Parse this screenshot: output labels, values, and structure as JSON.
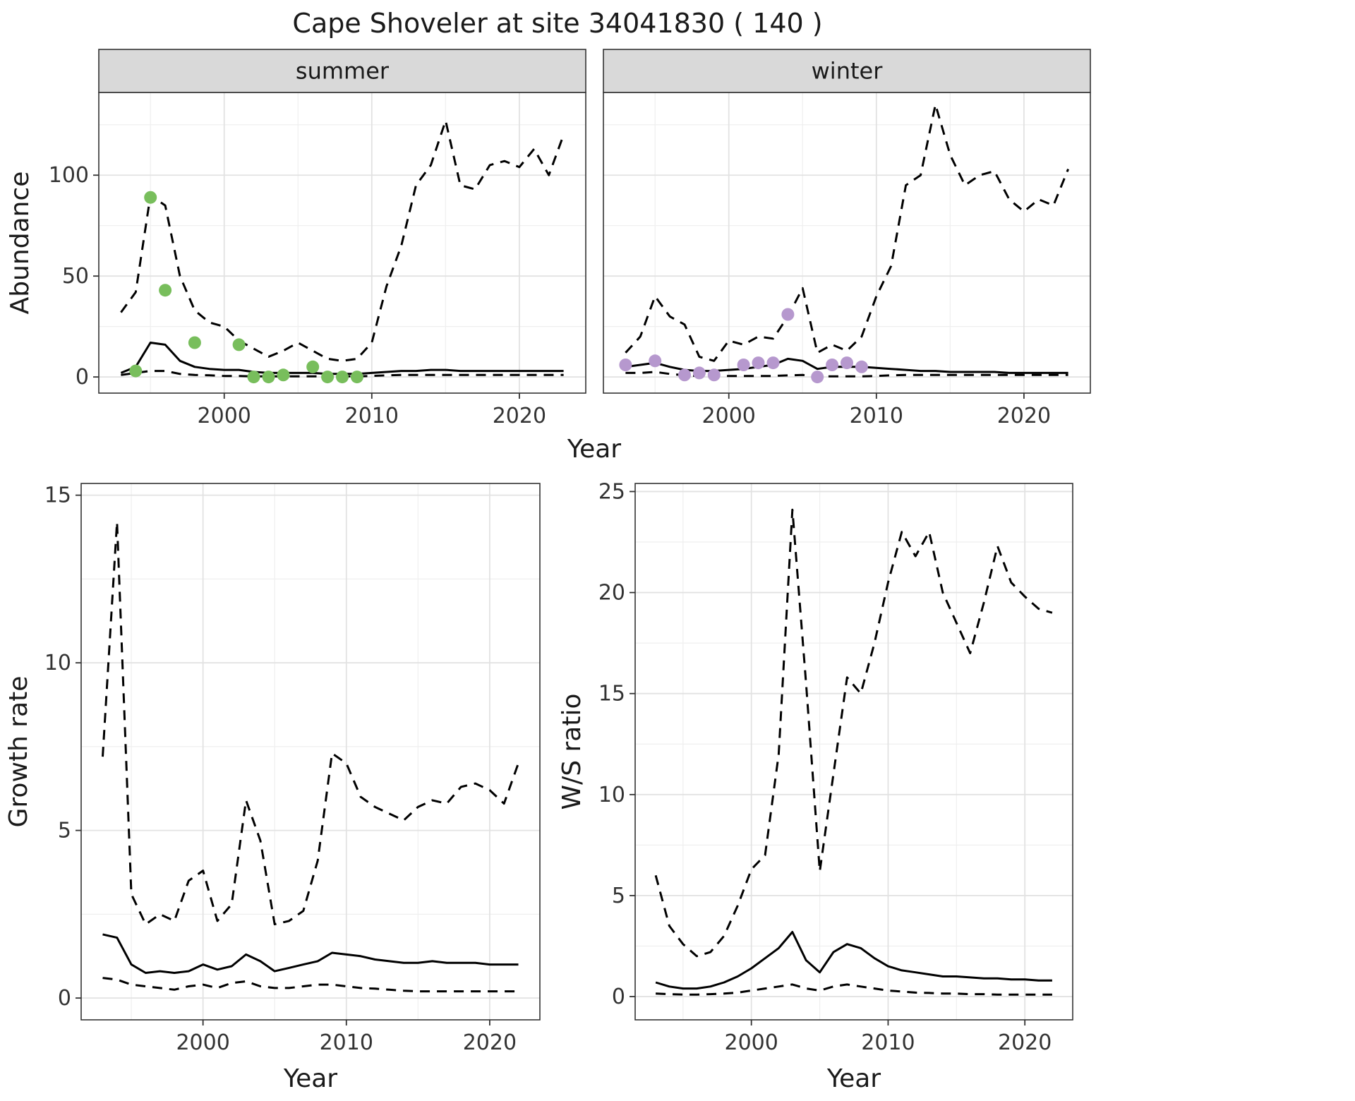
{
  "title": "Cape Shoveler at site 34041830 ( 140 )",
  "colors": {
    "summer_points": "#78be5c",
    "winter_points": "#b698ce",
    "fit_line": "#000000",
    "strip_bg": "#d9d9d9",
    "panel_bg": "#ffffff",
    "grid_major": "#e2e2e2",
    "grid_minor": "#efefef",
    "panel_border": "#333333",
    "tick_color": "#333333"
  },
  "chart_data": [
    {
      "id": "abundance-summer",
      "type": "line",
      "facet_label": "summer",
      "xlabel": "Year",
      "ylabel": "Abundance",
      "xlim": [
        1991.5,
        2024.5
      ],
      "ylim": [
        -8,
        141
      ],
      "xticks": [
        2000,
        2010,
        2020
      ],
      "xminor": [
        1995,
        2005,
        2015
      ],
      "yticks": [
        0,
        50,
        100
      ],
      "yminor": [
        25,
        75,
        125
      ],
      "x": [
        1993,
        1994,
        1995,
        1996,
        1997,
        1998,
        1999,
        2000,
        2001,
        2002,
        2003,
        2004,
        2005,
        2006,
        2007,
        2008,
        2009,
        2010,
        2011,
        2012,
        2013,
        2014,
        2015,
        2016,
        2017,
        2018,
        2019,
        2020,
        2021,
        2022,
        2023
      ],
      "series": [
        {
          "name": "estimate",
          "style": "solid",
          "values": [
            2,
            5,
            17,
            16,
            8,
            5,
            4,
            3.5,
            3.5,
            2.5,
            2,
            2,
            2,
            2,
            1.5,
            1.5,
            1.5,
            2,
            2.5,
            3,
            3,
            3.5,
            3.5,
            3,
            3,
            3,
            3,
            3,
            3,
            3,
            3
          ]
        },
        {
          "name": "upper-ci",
          "style": "dashed",
          "values": [
            32,
            42,
            90,
            85,
            50,
            33,
            27,
            25,
            18,
            14,
            10,
            13,
            17,
            13,
            9,
            8,
            9,
            17,
            45,
            65,
            95,
            105,
            127,
            95,
            93,
            105,
            107,
            104,
            113,
            100,
            120
          ]
        },
        {
          "name": "lower-ci",
          "style": "dashed",
          "values": [
            1,
            2,
            3,
            3,
            1.5,
            1,
            0.8,
            0.5,
            0.5,
            0.3,
            0.3,
            0.3,
            0.3,
            0.3,
            0.3,
            0.3,
            0.3,
            0.5,
            0.8,
            1,
            1,
            1,
            1,
            1,
            1,
            1,
            1,
            1,
            1,
            1,
            1
          ]
        }
      ],
      "points": {
        "name": "observed-summer",
        "color_key": "summer_points",
        "data": [
          [
            1994,
            3
          ],
          [
            1995,
            89
          ],
          [
            1996,
            43
          ],
          [
            1998,
            17
          ],
          [
            2001,
            16
          ],
          [
            2002,
            0
          ],
          [
            2003,
            0
          ],
          [
            2004,
            1
          ],
          [
            2006,
            5
          ],
          [
            2007,
            0
          ],
          [
            2008,
            0
          ],
          [
            2009,
            0
          ]
        ]
      }
    },
    {
      "id": "abundance-winter",
      "type": "line",
      "facet_label": "winter",
      "xlabel": "Year",
      "ylabel": null,
      "xlim": [
        1991.5,
        2024.5
      ],
      "ylim": [
        -8,
        141
      ],
      "xticks": [
        2000,
        2010,
        2020
      ],
      "xminor": [
        1995,
        2005,
        2015
      ],
      "yticks": [
        0,
        50,
        100
      ],
      "yminor": [
        25,
        75,
        125
      ],
      "x": [
        1993,
        1994,
        1995,
        1996,
        1997,
        1998,
        1999,
        2000,
        2001,
        2002,
        2003,
        2004,
        2005,
        2006,
        2007,
        2008,
        2009,
        2010,
        2011,
        2012,
        2013,
        2014,
        2015,
        2016,
        2017,
        2018,
        2019,
        2020,
        2021,
        2022,
        2023
      ],
      "series": [
        {
          "name": "estimate",
          "style": "solid",
          "values": [
            5,
            6,
            7,
            5,
            3.5,
            3,
            3,
            3.5,
            4,
            5,
            6,
            9,
            8,
            4,
            5,
            5,
            5,
            4.5,
            4,
            3.5,
            3,
            3,
            2.5,
            2.5,
            2.5,
            2.5,
            2,
            2,
            2,
            2,
            2
          ]
        },
        {
          "name": "upper-ci",
          "style": "dashed",
          "values": [
            12,
            20,
            40,
            30,
            26,
            10,
            8,
            18,
            16,
            20,
            19,
            30,
            44,
            12,
            16,
            13,
            20,
            40,
            55,
            95,
            100,
            135,
            110,
            95,
            100,
            102,
            88,
            82,
            88,
            85,
            103
          ]
        },
        {
          "name": "lower-ci",
          "style": "dashed",
          "values": [
            2,
            2,
            2.5,
            1.5,
            0.8,
            0.5,
            0.5,
            0.5,
            0.5,
            0.5,
            0.5,
            0.8,
            1,
            0.3,
            0.3,
            0.3,
            0.3,
            0.5,
            0.8,
            1,
            1,
            1,
            1,
            1,
            1,
            1,
            1,
            1,
            1,
            1,
            1
          ]
        }
      ],
      "points": {
        "name": "observed-winter",
        "color_key": "winter_points",
        "data": [
          [
            1993,
            6
          ],
          [
            1995,
            8
          ],
          [
            1997,
            1
          ],
          [
            1998,
            2
          ],
          [
            1999,
            1
          ],
          [
            2001,
            6
          ],
          [
            2002,
            7
          ],
          [
            2003,
            7
          ],
          [
            2004,
            31
          ],
          [
            2006,
            0
          ],
          [
            2007,
            6
          ],
          [
            2008,
            7
          ],
          [
            2009,
            5
          ]
        ]
      }
    },
    {
      "id": "growth-rate",
      "type": "line",
      "facet_label": null,
      "xlabel": "Year",
      "ylabel": "Growth rate",
      "xlim": [
        1991.5,
        2023.5
      ],
      "ylim": [
        -0.65,
        15.35
      ],
      "xticks": [
        2000,
        2010,
        2020
      ],
      "xminor": [
        1995,
        2005,
        2015
      ],
      "yticks": [
        0,
        5,
        10,
        15
      ],
      "yminor": [
        2.5,
        7.5,
        12.5
      ],
      "x": [
        1993,
        1994,
        1995,
        1996,
        1997,
        1998,
        1999,
        2000,
        2001,
        2002,
        2003,
        2004,
        2005,
        2006,
        2007,
        2008,
        2009,
        2010,
        2011,
        2012,
        2013,
        2014,
        2015,
        2016,
        2017,
        2018,
        2019,
        2020,
        2021,
        2022
      ],
      "series": [
        {
          "name": "estimate",
          "style": "solid",
          "values": [
            1.9,
            1.8,
            1.0,
            0.75,
            0.8,
            0.75,
            0.8,
            1.0,
            0.85,
            0.95,
            1.3,
            1.1,
            0.8,
            0.9,
            1.0,
            1.1,
            1.35,
            1.3,
            1.25,
            1.15,
            1.1,
            1.05,
            1.05,
            1.1,
            1.05,
            1.05,
            1.05,
            1.0,
            1.0,
            1.0
          ]
        },
        {
          "name": "upper-ci",
          "style": "dashed",
          "values": [
            7.2,
            14.2,
            3.1,
            2.2,
            2.5,
            2.3,
            3.5,
            3.8,
            2.3,
            2.8,
            5.9,
            4.7,
            2.2,
            2.3,
            2.6,
            4.1,
            7.3,
            7.0,
            6.0,
            5.7,
            5.5,
            5.3,
            5.7,
            5.9,
            5.8,
            6.3,
            6.4,
            6.2,
            5.8,
            7.0
          ]
        },
        {
          "name": "lower-ci",
          "style": "dashed",
          "values": [
            0.6,
            0.55,
            0.4,
            0.35,
            0.3,
            0.25,
            0.35,
            0.4,
            0.3,
            0.45,
            0.5,
            0.35,
            0.3,
            0.3,
            0.35,
            0.4,
            0.4,
            0.35,
            0.3,
            0.28,
            0.25,
            0.22,
            0.2,
            0.2,
            0.2,
            0.2,
            0.2,
            0.2,
            0.2,
            0.2
          ]
        }
      ],
      "points": null
    },
    {
      "id": "ws-ratio",
      "type": "line",
      "facet_label": null,
      "xlabel": "Year",
      "ylabel": "W/S ratio",
      "xlim": [
        1991.5,
        2023.5
      ],
      "ylim": [
        -1.15,
        25.4
      ],
      "xticks": [
        2000,
        2010,
        2020
      ],
      "xminor": [
        1995,
        2005,
        2015
      ],
      "yticks": [
        0,
        5,
        10,
        15,
        20,
        25
      ],
      "yminor": [
        2.5,
        7.5,
        12.5,
        17.5,
        22.5
      ],
      "x": [
        1993,
        1994,
        1995,
        1996,
        1997,
        1998,
        1999,
        2000,
        2001,
        2002,
        2003,
        2004,
        2005,
        2006,
        2007,
        2008,
        2009,
        2010,
        2011,
        2012,
        2013,
        2014,
        2015,
        2016,
        2017,
        2018,
        2019,
        2020,
        2021,
        2022
      ],
      "series": [
        {
          "name": "estimate",
          "style": "solid",
          "values": [
            0.7,
            0.5,
            0.4,
            0.4,
            0.5,
            0.7,
            1.0,
            1.4,
            1.9,
            2.4,
            3.2,
            1.8,
            1.2,
            2.2,
            2.6,
            2.4,
            1.9,
            1.5,
            1.3,
            1.2,
            1.1,
            1.0,
            1.0,
            0.95,
            0.9,
            0.9,
            0.85,
            0.85,
            0.8,
            0.8
          ]
        },
        {
          "name": "upper-ci",
          "style": "dashed",
          "values": [
            6.0,
            3.5,
            2.6,
            2.0,
            2.2,
            3.0,
            4.5,
            6.3,
            7.0,
            12.0,
            24.1,
            15.5,
            6.2,
            11.0,
            15.8,
            15.0,
            17.5,
            20.5,
            23.0,
            21.8,
            23.0,
            20.0,
            18.5,
            17.0,
            19.5,
            22.3,
            20.5,
            19.8,
            19.2,
            19.0
          ]
        },
        {
          "name": "lower-ci",
          "style": "dashed",
          "values": [
            0.15,
            0.12,
            0.1,
            0.1,
            0.12,
            0.15,
            0.2,
            0.3,
            0.4,
            0.5,
            0.6,
            0.4,
            0.3,
            0.5,
            0.6,
            0.5,
            0.4,
            0.3,
            0.25,
            0.2,
            0.18,
            0.15,
            0.15,
            0.12,
            0.12,
            0.1,
            0.1,
            0.1,
            0.1,
            0.1
          ]
        }
      ],
      "points": null
    }
  ]
}
